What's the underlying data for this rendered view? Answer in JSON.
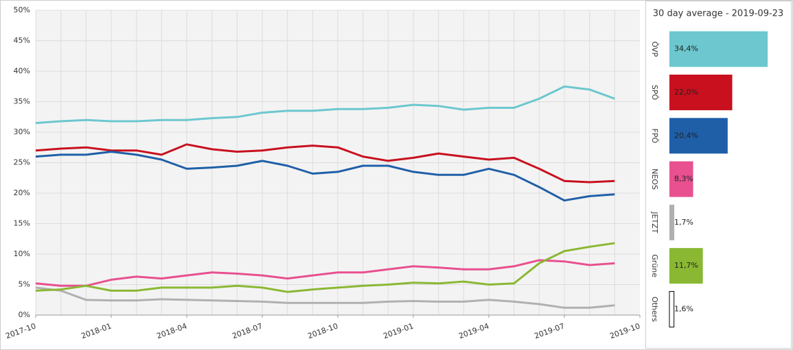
{
  "chart_data": [
    {
      "type": "line",
      "x": [
        "2017-10",
        "2017-11",
        "2017-12",
        "2018-01",
        "2018-02",
        "2018-03",
        "2018-04",
        "2018-05",
        "2018-06",
        "2018-07",
        "2018-08",
        "2018-09",
        "2018-10",
        "2018-11",
        "2018-12",
        "2019-01",
        "2019-02",
        "2019-03",
        "2019-04",
        "2019-05",
        "2019-06",
        "2019-07",
        "2019-08",
        "2019-09"
      ],
      "xlim": [
        "2017-10",
        "2019-10"
      ],
      "xticks": [
        "2017-10",
        "2018-01",
        "2018-04",
        "2018-07",
        "2018-10",
        "2019-01",
        "2019-04",
        "2019-07",
        "2019-10"
      ],
      "ylim": [
        0,
        50
      ],
      "yticks": [
        {
          "value": 0,
          "label": "0%"
        },
        {
          "value": 5,
          "label": "5%"
        },
        {
          "value": 10,
          "label": "10%"
        },
        {
          "value": 15,
          "label": "15%"
        },
        {
          "value": 20,
          "label": "20%"
        },
        {
          "value": 25,
          "label": "25%"
        },
        {
          "value": 30,
          "label": "30%"
        },
        {
          "value": 35,
          "label": "35%"
        },
        {
          "value": 40,
          "label": "40%"
        },
        {
          "value": 45,
          "label": "45%"
        },
        {
          "value": 50,
          "label": "50%"
        }
      ],
      "grid": true,
      "series": [
        {
          "name": "ÖVP",
          "color": "#6cc7cf",
          "values": [
            31.5,
            31.8,
            32,
            31.8,
            31.8,
            32,
            32,
            32.3,
            32.5,
            33.2,
            33.5,
            33.5,
            33.8,
            33.8,
            34,
            34.5,
            34.3,
            33.7,
            34,
            34,
            35.5,
            37.5,
            37,
            35.5
          ]
        },
        {
          "name": "SPÖ",
          "color": "#c8101e",
          "values": [
            27,
            27.3,
            27.5,
            27,
            27,
            26.3,
            28,
            27.2,
            26.8,
            27,
            27.5,
            27.8,
            27.5,
            26,
            25.3,
            25.8,
            26.5,
            26,
            25.5,
            25.8,
            24,
            22,
            21.8,
            22
          ]
        },
        {
          "name": "FPÖ",
          "color": "#1f5fa8",
          "values": [
            26,
            26.3,
            26.3,
            26.8,
            26.3,
            25.5,
            24,
            24.2,
            24.5,
            25.3,
            24.5,
            23.2,
            23.5,
            24.5,
            24.5,
            23.5,
            23,
            23,
            24,
            23,
            21,
            18.8,
            19.5,
            19.8
          ]
        },
        {
          "name": "NEOS",
          "color": "#e8508f",
          "values": [
            5.2,
            4.8,
            4.8,
            5.8,
            6.3,
            6,
            6.5,
            7,
            6.8,
            6.5,
            6,
            6.5,
            7,
            7,
            7.5,
            8,
            7.8,
            7.5,
            7.5,
            8,
            9,
            8.8,
            8.2,
            8.5
          ]
        },
        {
          "name": "JETZT",
          "color": "#b0b0b0",
          "values": [
            4.5,
            4,
            2.5,
            2.4,
            2.4,
            2.6,
            2.5,
            2.4,
            2.3,
            2.2,
            2,
            2,
            2,
            2,
            2.2,
            2.3,
            2.2,
            2.2,
            2.5,
            2.2,
            1.8,
            1.2,
            1.2,
            1.6
          ]
        },
        {
          "name": "Grüne",
          "color": "#8ab833",
          "values": [
            4,
            4.2,
            4.8,
            4,
            4,
            4.5,
            4.5,
            4.5,
            4.8,
            4.5,
            3.8,
            4.2,
            4.5,
            4.8,
            5,
            5.3,
            5.2,
            5.5,
            5,
            5.2,
            8.5,
            10.5,
            11.2,
            11.8
          ]
        }
      ]
    },
    {
      "type": "bar",
      "title": "30 day average - 2019-09-23",
      "categories": [
        "ÖVP",
        "SPÖ",
        "FPÖ",
        "NEOS",
        "JETZT",
        "Grüne",
        "Others"
      ],
      "values": [
        34.4,
        22.0,
        20.4,
        8.3,
        1.7,
        11.7,
        1.6
      ],
      "value_labels": [
        "34,4%",
        "22,0%",
        "20,4%",
        "8,3%",
        "1,7%",
        "11,7%",
        "1,6%"
      ],
      "colors": [
        "#6cc7cf",
        "#c8101e",
        "#1f5fa8",
        "#e8508f",
        "#b0b0b0",
        "#8ab833",
        "#ffffff"
      ]
    }
  ]
}
